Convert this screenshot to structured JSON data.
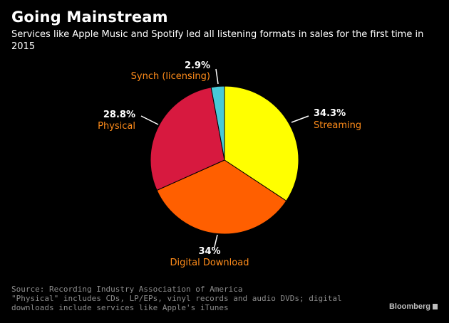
{
  "header": {
    "title": "Going Mainstream",
    "subtitle": "Services like Apple Music and Spotify led all listening formats in sales for the first time in 2015"
  },
  "chart_data": {
    "type": "pie",
    "title": "Going Mainstream",
    "slices": [
      {
        "label": "Streaming",
        "value": 34.3,
        "pct_label": "34.3%",
        "color": "#ffff00"
      },
      {
        "label": "Digital Download",
        "value": 34,
        "pct_label": "34%",
        "color": "#ff5f00"
      },
      {
        "label": "Physical",
        "value": 28.8,
        "pct_label": "28.8%",
        "color": "#d7193f"
      },
      {
        "label": "Synch (licensing)",
        "value": 2.9,
        "pct_label": "2.9%",
        "color": "#48c9d8"
      }
    ]
  },
  "footer": {
    "source": "Source: Recording Industry Association of America",
    "note": "\"Physical\" includes CDs, LP/EPs, vinyl records and audio DVDs; digital downloads include services like Apple's iTunes"
  },
  "brand": {
    "name": "Bloomberg",
    "icon": "bloomberg-logo-icon"
  }
}
